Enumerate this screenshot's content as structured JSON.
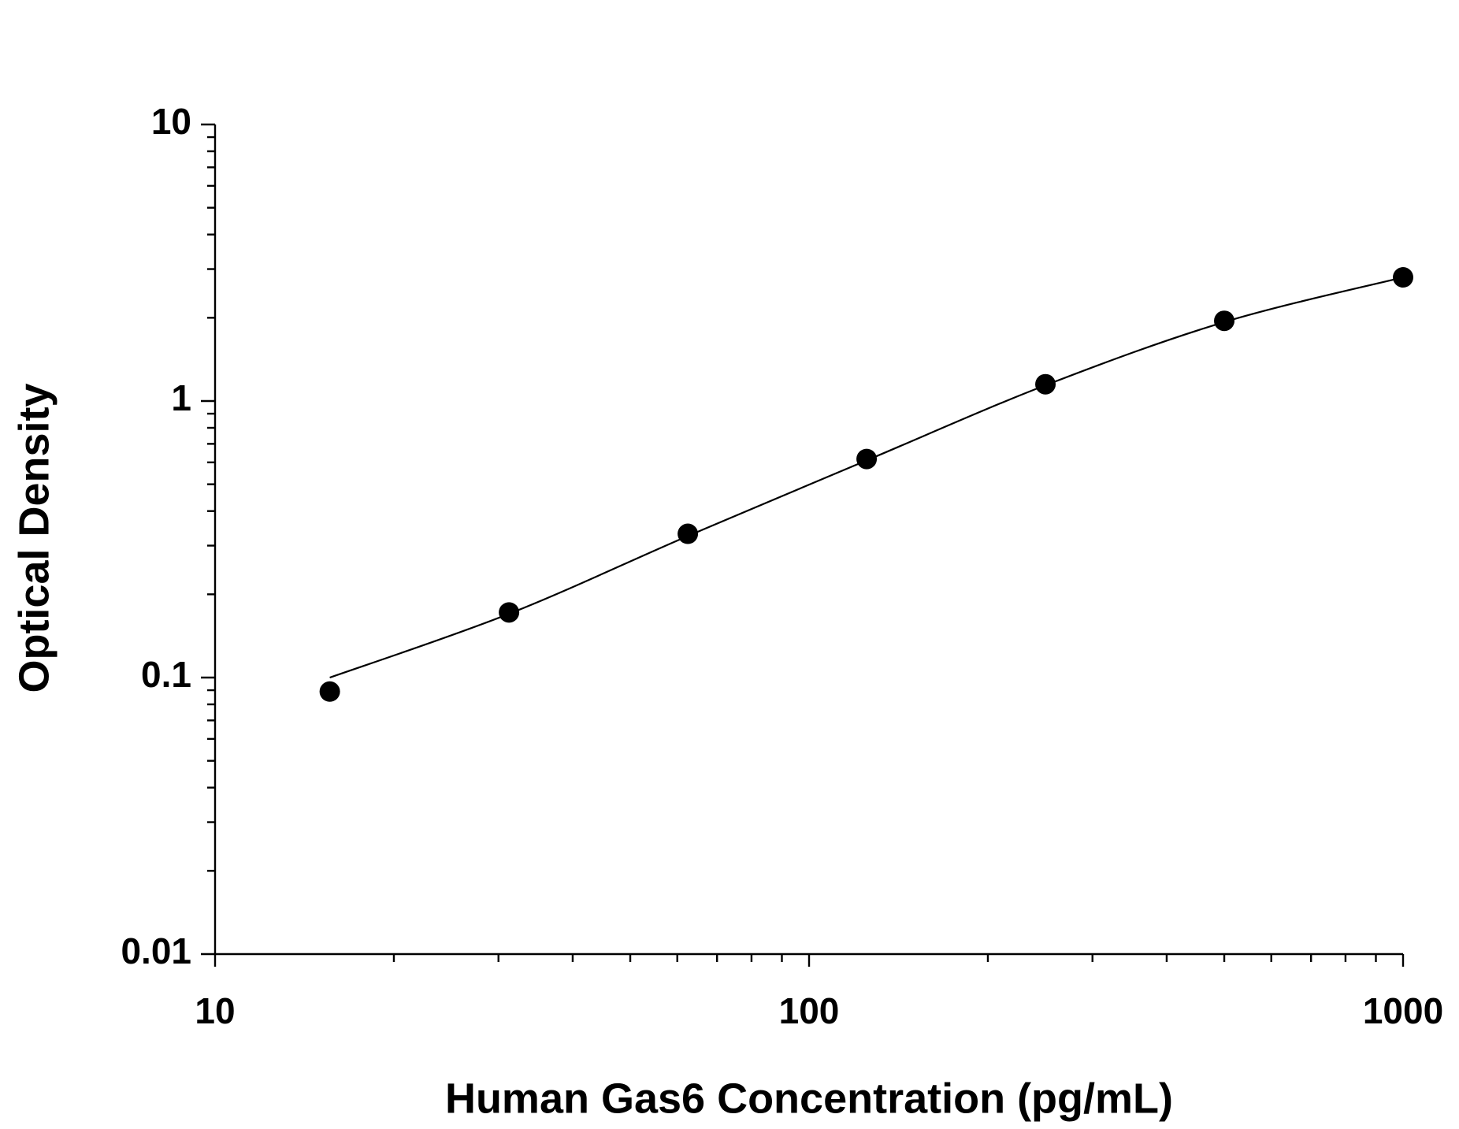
{
  "chart_data": {
    "type": "scatter",
    "x_label": "Human Gas6 Concentration (pg/mL)",
    "y_label": "Optical Density",
    "x": [
      15.6,
      31.25,
      62.5,
      125,
      250,
      500,
      1000
    ],
    "series": [
      {
        "values": [
          0.089,
          0.172,
          0.331,
          0.617,
          1.15,
          1.95,
          2.8
        ],
        "color": "#000000",
        "style": "markers"
      },
      {
        "values": [
          0.1,
          0.17,
          0.325,
          0.61,
          1.14,
          1.93,
          2.8
        ],
        "color": "#000000",
        "style": "line"
      }
    ],
    "xlim": [
      10,
      1000
    ],
    "ylim": [
      0.01,
      10
    ],
    "xticks": [
      10,
      100,
      1000
    ],
    "yticks": [
      0.01,
      0.1,
      1,
      10
    ],
    "xscale": "log",
    "yscale": "log",
    "grid": false
  }
}
